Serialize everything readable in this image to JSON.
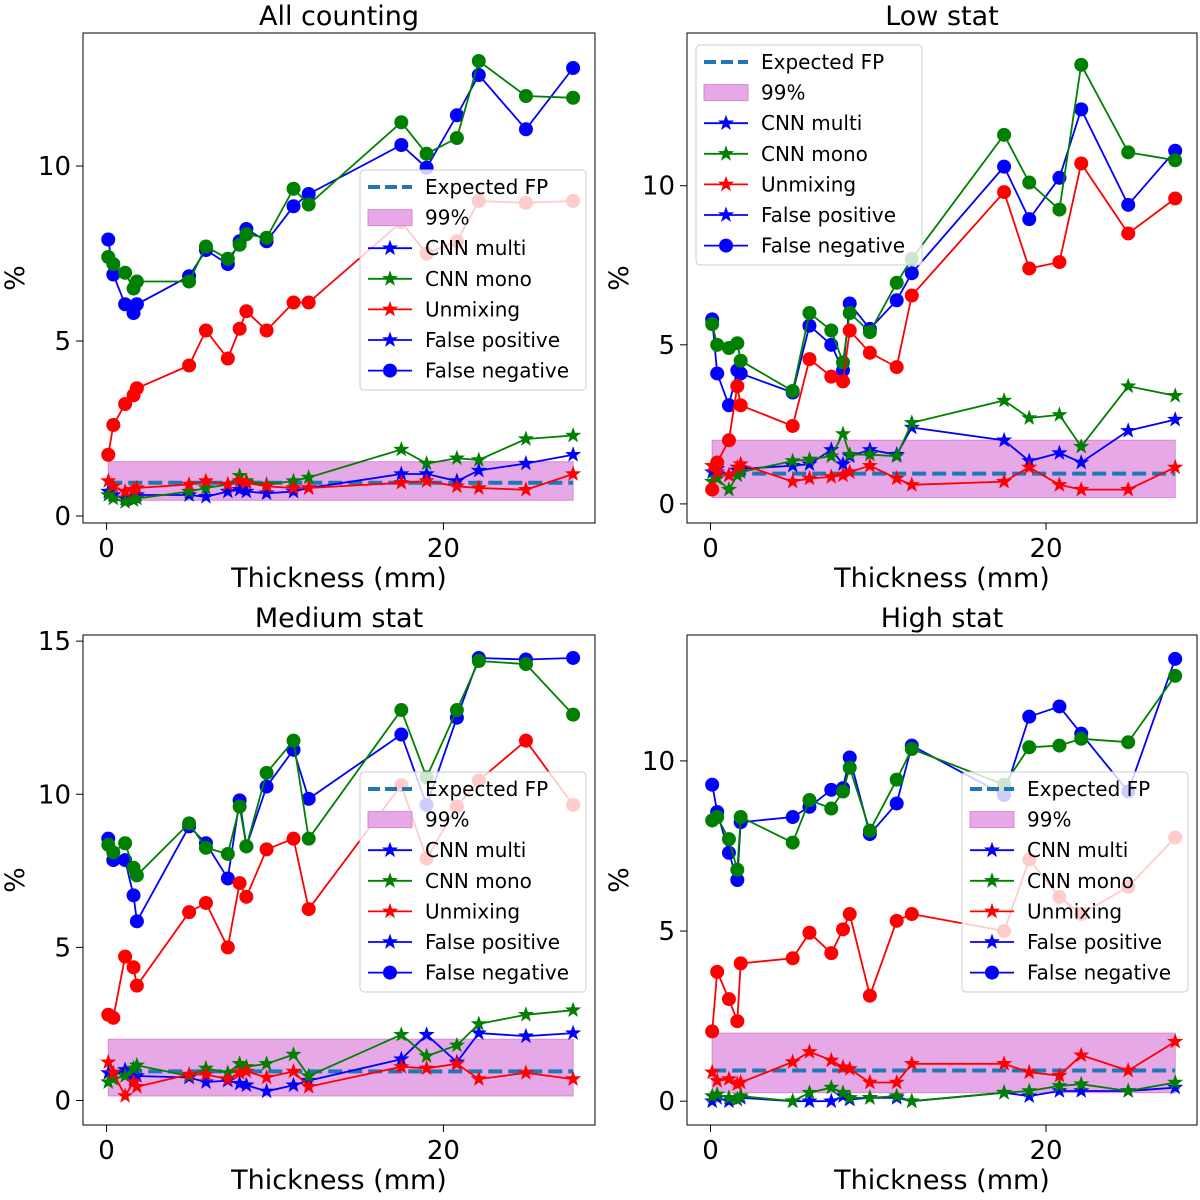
{
  "figure": {
    "background": "#ffffff"
  },
  "legend_labels": [
    "Expected FP",
    "99%",
    "CNN multi",
    "CNN mono",
    "Unmixing",
    "False positive",
    "False negative"
  ],
  "colors": {
    "blue": "#0000ff",
    "green": "#008000",
    "red": "#ff0000",
    "expected_fp": "#1f77b4",
    "band": "#e7a8e7"
  },
  "chart_data": [
    {
      "type": "line",
      "title": "All counting",
      "xlabel": "Thickness (mm)",
      "ylabel": "%",
      "xlim": [
        -1.4,
        29.0
      ],
      "ylim": [
        -0.2,
        13.8
      ],
      "xticks": [
        0,
        20
      ],
      "yticks": [
        0,
        5,
        10
      ],
      "legend_position": "center-right",
      "x": [
        0.1,
        0.4,
        1.1,
        1.6,
        1.8,
        4.9,
        5.9,
        7.2,
        7.9,
        8.3,
        9.5,
        11.1,
        12.0,
        17.5,
        19.0,
        20.8,
        22.1,
        24.9,
        27.7
      ],
      "expected_fp": 0.95,
      "band_99": {
        "lower": 0.45,
        "upper": 1.55
      },
      "series": [
        {
          "name": "CNN multi",
          "metric": "False positive",
          "color": "#0000ff",
          "values": [
            0.7,
            0.6,
            0.5,
            0.55,
            0.6,
            0.6,
            0.55,
            0.7,
            0.75,
            0.7,
            0.65,
            0.7,
            0.8,
            1.2,
            1.2,
            1.0,
            1.3,
            1.5,
            1.75
          ]
        },
        {
          "name": "CNN mono",
          "metric": "False positive",
          "color": "#008000",
          "values": [
            0.6,
            0.5,
            0.4,
            0.45,
            0.5,
            0.7,
            0.8,
            0.9,
            1.15,
            1.0,
            0.9,
            1.0,
            1.1,
            1.9,
            1.5,
            1.65,
            1.6,
            2.2,
            2.3
          ]
        },
        {
          "name": "Unmixing",
          "metric": "False positive",
          "color": "#ff0000",
          "values": [
            1.0,
            0.85,
            0.7,
            0.75,
            0.8,
            0.9,
            1.0,
            0.9,
            1.0,
            0.95,
            0.85,
            0.8,
            0.8,
            0.95,
            1.0,
            0.85,
            0.8,
            0.75,
            1.2
          ]
        },
        {
          "name": "CNN multi",
          "metric": "False negative",
          "color": "#0000ff",
          "values": [
            7.9,
            6.9,
            6.05,
            5.8,
            6.05,
            6.85,
            7.6,
            7.2,
            7.85,
            8.2,
            7.85,
            8.85,
            9.2,
            10.6,
            9.95,
            11.45,
            12.6,
            11.05,
            12.8
          ]
        },
        {
          "name": "CNN mono",
          "metric": "False negative",
          "color": "#008000",
          "values": [
            7.4,
            7.2,
            6.95,
            6.5,
            6.7,
            6.7,
            7.7,
            7.35,
            7.75,
            8.05,
            7.95,
            9.35,
            8.9,
            11.25,
            10.35,
            10.8,
            13.0,
            12.0,
            11.95
          ]
        },
        {
          "name": "Unmixing",
          "metric": "False negative",
          "color": "#ff0000",
          "values": [
            1.75,
            2.6,
            3.2,
            3.45,
            3.65,
            4.3,
            5.3,
            4.5,
            5.35,
            5.85,
            5.3,
            6.1,
            6.1,
            8.4,
            7.5,
            7.85,
            9.0,
            8.95,
            9.0
          ]
        }
      ]
    },
    {
      "type": "line",
      "title": "Low stat",
      "xlabel": "Thickness (mm)",
      "ylabel": "%",
      "xlim": [
        -1.4,
        29.0
      ],
      "ylim": [
        -0.6,
        14.8
      ],
      "xticks": [
        0,
        20
      ],
      "yticks": [
        0,
        5,
        10
      ],
      "legend_position": "top-left",
      "x": [
        0.1,
        0.4,
        1.1,
        1.6,
        1.8,
        4.9,
        5.9,
        7.2,
        7.9,
        8.3,
        9.5,
        11.1,
        12.0,
        17.5,
        19.0,
        20.8,
        22.1,
        24.9,
        27.7
      ],
      "expected_fp": 0.95,
      "band_99": {
        "lower": 0.2,
        "upper": 2.0
      },
      "series": [
        {
          "name": "CNN multi",
          "metric": "False positive",
          "color": "#0000ff",
          "values": [
            1.0,
            1.1,
            0.9,
            1.05,
            1.1,
            1.2,
            1.25,
            1.7,
            1.25,
            1.5,
            1.7,
            1.55,
            2.4,
            2.0,
            1.35,
            1.6,
            1.3,
            2.3,
            2.65
          ]
        },
        {
          "name": "CNN mono",
          "metric": "False positive",
          "color": "#008000",
          "values": [
            0.7,
            0.8,
            0.45,
            0.9,
            1.0,
            1.35,
            1.4,
            1.5,
            2.2,
            1.55,
            1.55,
            1.5,
            2.55,
            3.25,
            2.7,
            2.8,
            1.8,
            3.7,
            3.4
          ]
        },
        {
          "name": "Unmixing",
          "metric": "False positive",
          "color": "#ff0000",
          "values": [
            1.2,
            1.0,
            0.9,
            1.15,
            1.25,
            0.7,
            0.8,
            0.85,
            0.9,
            1.0,
            1.2,
            0.8,
            0.6,
            0.7,
            1.15,
            0.6,
            0.45,
            0.45,
            1.15
          ]
        },
        {
          "name": "CNN multi",
          "metric": "False negative",
          "color": "#0000ff",
          "values": [
            5.8,
            4.1,
            3.1,
            4.2,
            4.1,
            3.5,
            5.6,
            5.0,
            4.2,
            6.3,
            5.5,
            6.4,
            7.25,
            10.6,
            8.95,
            10.25,
            12.4,
            9.4,
            11.1
          ]
        },
        {
          "name": "CNN mono",
          "metric": "False negative",
          "color": "#008000",
          "values": [
            5.65,
            5.0,
            4.9,
            5.05,
            4.5,
            3.55,
            6.0,
            5.45,
            4.45,
            6.0,
            5.4,
            6.95,
            7.7,
            11.6,
            10.1,
            9.25,
            13.8,
            11.05,
            10.8
          ]
        },
        {
          "name": "Unmixing",
          "metric": "False negative",
          "color": "#ff0000",
          "values": [
            0.45,
            1.3,
            2.0,
            3.7,
            3.1,
            2.45,
            4.55,
            4.0,
            3.85,
            5.45,
            4.75,
            4.3,
            6.55,
            9.8,
            7.4,
            7.6,
            10.7,
            8.5,
            9.6
          ]
        }
      ]
    },
    {
      "type": "line",
      "title": "Medium stat",
      "xlabel": "Thickness (mm)",
      "ylabel": "%",
      "xlim": [
        -1.4,
        29.0
      ],
      "ylim": [
        -0.8,
        15.2
      ],
      "xticks": [
        0,
        20
      ],
      "yticks": [
        0,
        5,
        10,
        15
      ],
      "legend_position": "center-right",
      "x": [
        0.1,
        0.4,
        1.1,
        1.6,
        1.8,
        4.9,
        5.9,
        7.2,
        7.9,
        8.3,
        9.5,
        11.1,
        12.0,
        17.5,
        19.0,
        20.8,
        22.1,
        24.9,
        27.7
      ],
      "expected_fp": 0.95,
      "band_99": {
        "lower": 0.15,
        "upper": 2.0
      },
      "series": [
        {
          "name": "CNN multi",
          "metric": "False positive",
          "color": "#0000ff",
          "values": [
            0.9,
            0.85,
            1.0,
            0.7,
            0.8,
            0.75,
            0.6,
            0.65,
            0.55,
            0.5,
            0.3,
            0.5,
            0.65,
            1.35,
            2.15,
            1.25,
            2.2,
            2.1,
            2.2
          ]
        },
        {
          "name": "CNN mono",
          "metric": "False positive",
          "color": "#008000",
          "values": [
            0.6,
            0.7,
            0.8,
            1.05,
            1.15,
            0.8,
            1.05,
            0.9,
            1.2,
            1.1,
            1.2,
            1.5,
            0.8,
            2.15,
            1.45,
            1.8,
            2.5,
            2.8,
            2.95
          ]
        },
        {
          "name": "Unmixing",
          "metric": "False positive",
          "color": "#ff0000",
          "values": [
            1.25,
            0.9,
            0.15,
            0.6,
            0.45,
            0.85,
            0.85,
            0.7,
            0.9,
            0.95,
            0.75,
            0.95,
            0.45,
            1.1,
            1.05,
            1.2,
            0.7,
            0.9,
            0.7
          ]
        },
        {
          "name": "CNN multi",
          "metric": "False negative",
          "color": "#0000ff",
          "values": [
            8.55,
            7.85,
            7.85,
            6.7,
            5.85,
            8.95,
            8.4,
            7.25,
            9.8,
            8.3,
            10.25,
            11.45,
            9.85,
            11.95,
            9.65,
            12.5,
            14.45,
            14.4,
            14.45
          ]
        },
        {
          "name": "CNN mono",
          "metric": "False negative",
          "color": "#008000",
          "values": [
            8.35,
            8.1,
            8.4,
            7.6,
            7.35,
            9.05,
            8.25,
            8.05,
            9.6,
            8.3,
            10.7,
            11.75,
            8.55,
            12.75,
            10.55,
            12.75,
            14.35,
            14.25,
            12.6
          ]
        },
        {
          "name": "Unmixing",
          "metric": "False negative",
          "color": "#ff0000",
          "values": [
            2.8,
            2.7,
            4.7,
            4.35,
            3.75,
            6.15,
            6.45,
            5.0,
            7.1,
            6.65,
            8.2,
            8.55,
            6.25,
            10.3,
            7.9,
            9.6,
            10.45,
            11.75,
            9.65
          ]
        }
      ]
    },
    {
      "type": "line",
      "title": "High stat",
      "xlabel": "Thickness (mm)",
      "ylabel": "%",
      "xlim": [
        -1.4,
        29.0
      ],
      "ylim": [
        -0.7,
        13.7
      ],
      "xticks": [
        0,
        20
      ],
      "yticks": [
        0,
        5,
        10
      ],
      "legend_position": "center-right",
      "x": [
        0.1,
        0.4,
        1.1,
        1.6,
        1.8,
        4.9,
        5.9,
        7.2,
        7.9,
        8.3,
        9.5,
        11.1,
        12.0,
        17.5,
        19.0,
        20.8,
        22.1,
        24.9,
        27.7
      ],
      "expected_fp": 0.9,
      "band_99": {
        "lower": 0.25,
        "upper": 2.0
      },
      "series": [
        {
          "name": "CNN multi",
          "metric": "False positive",
          "color": "#0000ff",
          "values": [
            0.0,
            0.1,
            0.0,
            0.05,
            0.1,
            0.0,
            0.0,
            0.0,
            0.15,
            0.05,
            0.1,
            0.1,
            0.0,
            0.25,
            0.15,
            0.3,
            0.3,
            0.3,
            0.4
          ]
        },
        {
          "name": "CNN mono",
          "metric": "False positive",
          "color": "#008000",
          "values": [
            0.15,
            0.2,
            0.1,
            0.05,
            0.15,
            0.0,
            0.25,
            0.4,
            0.25,
            0.1,
            0.1,
            0.15,
            0.0,
            0.25,
            0.3,
            0.45,
            0.5,
            0.3,
            0.55
          ]
        },
        {
          "name": "Unmixing",
          "metric": "False positive",
          "color": "#ff0000",
          "values": [
            0.85,
            0.6,
            0.65,
            0.5,
            0.55,
            1.15,
            1.45,
            1.2,
            1.0,
            0.95,
            0.55,
            0.55,
            1.1,
            1.1,
            0.85,
            0.75,
            1.35,
            0.9,
            1.75
          ]
        },
        {
          "name": "CNN multi",
          "metric": "False negative",
          "color": "#0000ff",
          "values": [
            9.3,
            8.5,
            7.3,
            6.5,
            8.2,
            8.35,
            8.65,
            9.15,
            9.2,
            10.1,
            7.85,
            8.75,
            10.45,
            9.0,
            11.3,
            11.6,
            10.8,
            9.1,
            13.0
          ]
        },
        {
          "name": "CNN mono",
          "metric": "False negative",
          "color": "#008000",
          "values": [
            8.25,
            8.35,
            7.7,
            6.8,
            8.35,
            7.6,
            8.85,
            8.6,
            9.1,
            9.8,
            7.95,
            9.45,
            10.35,
            9.3,
            10.4,
            10.45,
            10.65,
            10.55,
            12.5
          ]
        },
        {
          "name": "Unmixing",
          "metric": "False negative",
          "color": "#ff0000",
          "values": [
            2.05,
            3.8,
            3.0,
            2.35,
            4.05,
            4.2,
            4.95,
            4.35,
            5.05,
            5.5,
            3.1,
            5.3,
            5.5,
            5.0,
            7.1,
            6.0,
            5.5,
            6.3,
            7.75
          ]
        }
      ]
    }
  ]
}
